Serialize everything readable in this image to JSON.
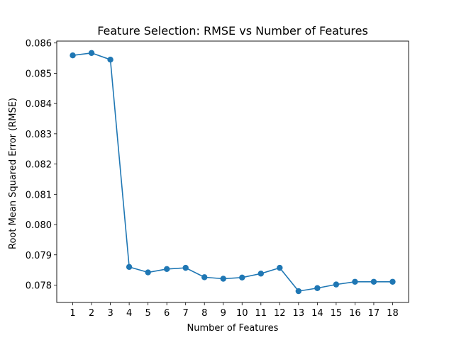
{
  "chart_data": {
    "type": "line",
    "title": "Feature Selection: RMSE vs Number of Features",
    "xlabel": "Number of Features",
    "ylabel": "Root Mean Squared Error (RMSE)",
    "x": [
      1,
      2,
      3,
      4,
      5,
      6,
      7,
      8,
      9,
      10,
      11,
      12,
      13,
      14,
      15,
      16,
      17,
      18
    ],
    "series": [
      {
        "values": [
          0.08559,
          0.08567,
          0.08545,
          0.0786,
          0.07842,
          0.07853,
          0.07857,
          0.07826,
          0.07821,
          0.07825,
          0.07838,
          0.07857,
          0.0778,
          0.0779,
          0.07802,
          0.07811,
          0.07811,
          0.07811
        ],
        "color": "#1f77b4",
        "marker": "circle"
      }
    ],
    "xticks": [
      "1",
      "2",
      "3",
      "4",
      "5",
      "6",
      "7",
      "8",
      "9",
      "10",
      "11",
      "12",
      "13",
      "14",
      "15",
      "16",
      "17",
      "18"
    ],
    "yticks": [
      "0.078",
      "0.079",
      "0.080",
      "0.081",
      "0.082",
      "0.083",
      "0.084",
      "0.085",
      "0.086"
    ],
    "xlim": [
      0.15,
      18.85
    ],
    "ylim": [
      0.077426,
      0.086063
    ],
    "grid": false,
    "legend": "none"
  }
}
